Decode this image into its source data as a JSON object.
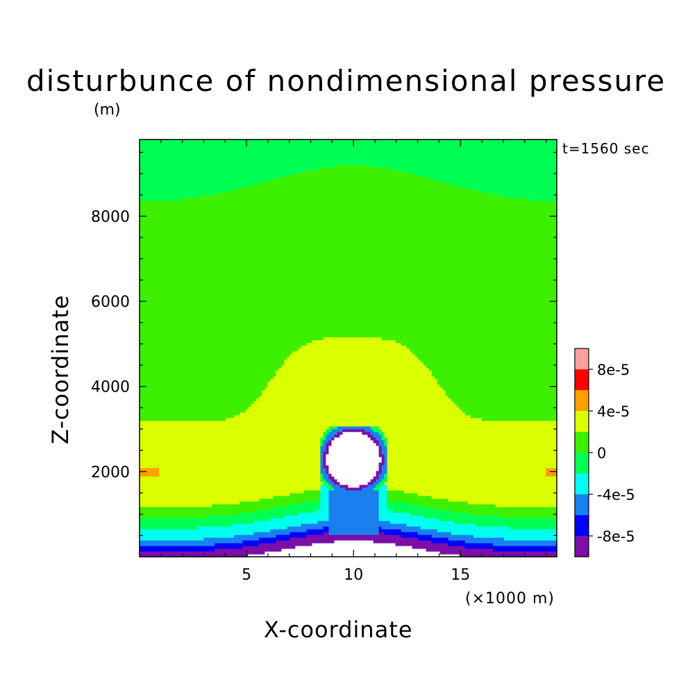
{
  "title": "disturbunce of nondimensional pressure",
  "subtitle": "(m)",
  "time_label": "t=1560 sec",
  "chart_data": {
    "type": "heatmap",
    "title": "disturbunce of nondimensional pressure",
    "xlabel": "X-coordinate",
    "xunit": "(×1000 m)",
    "ylabel": "Z-coordinate",
    "yunit": "(m)",
    "xlim": [
      0,
      19.5
    ],
    "ylim": [
      0,
      9800
    ],
    "x_ticks": [
      5,
      10,
      15
    ],
    "y_ticks": [
      2000,
      4000,
      6000,
      8000
    ],
    "colorbar": {
      "levels": [
        -0.0001,
        -8e-05,
        -6e-05,
        -4e-05,
        -2e-05,
        0,
        2e-05,
        4e-05,
        6e-05,
        8e-05,
        0.0001
      ],
      "colors": [
        "#7b0fa8",
        "#0000ff",
        "#1a80f0",
        "#00ffee",
        "#00ff55",
        "#3cf000",
        "#dcff00",
        "#ffa000",
        "#ff0000",
        "#f8a0a0"
      ],
      "tick_labels": [
        "-8e-5",
        "-4e-5",
        "0",
        "4e-5",
        "8e-5"
      ],
      "tick_values": [
        -8e-05,
        -4e-05,
        0,
        4e-05,
        8e-05
      ]
    },
    "colors": {
      "below_range": "#ffffff",
      "frame": "#000000"
    }
  }
}
